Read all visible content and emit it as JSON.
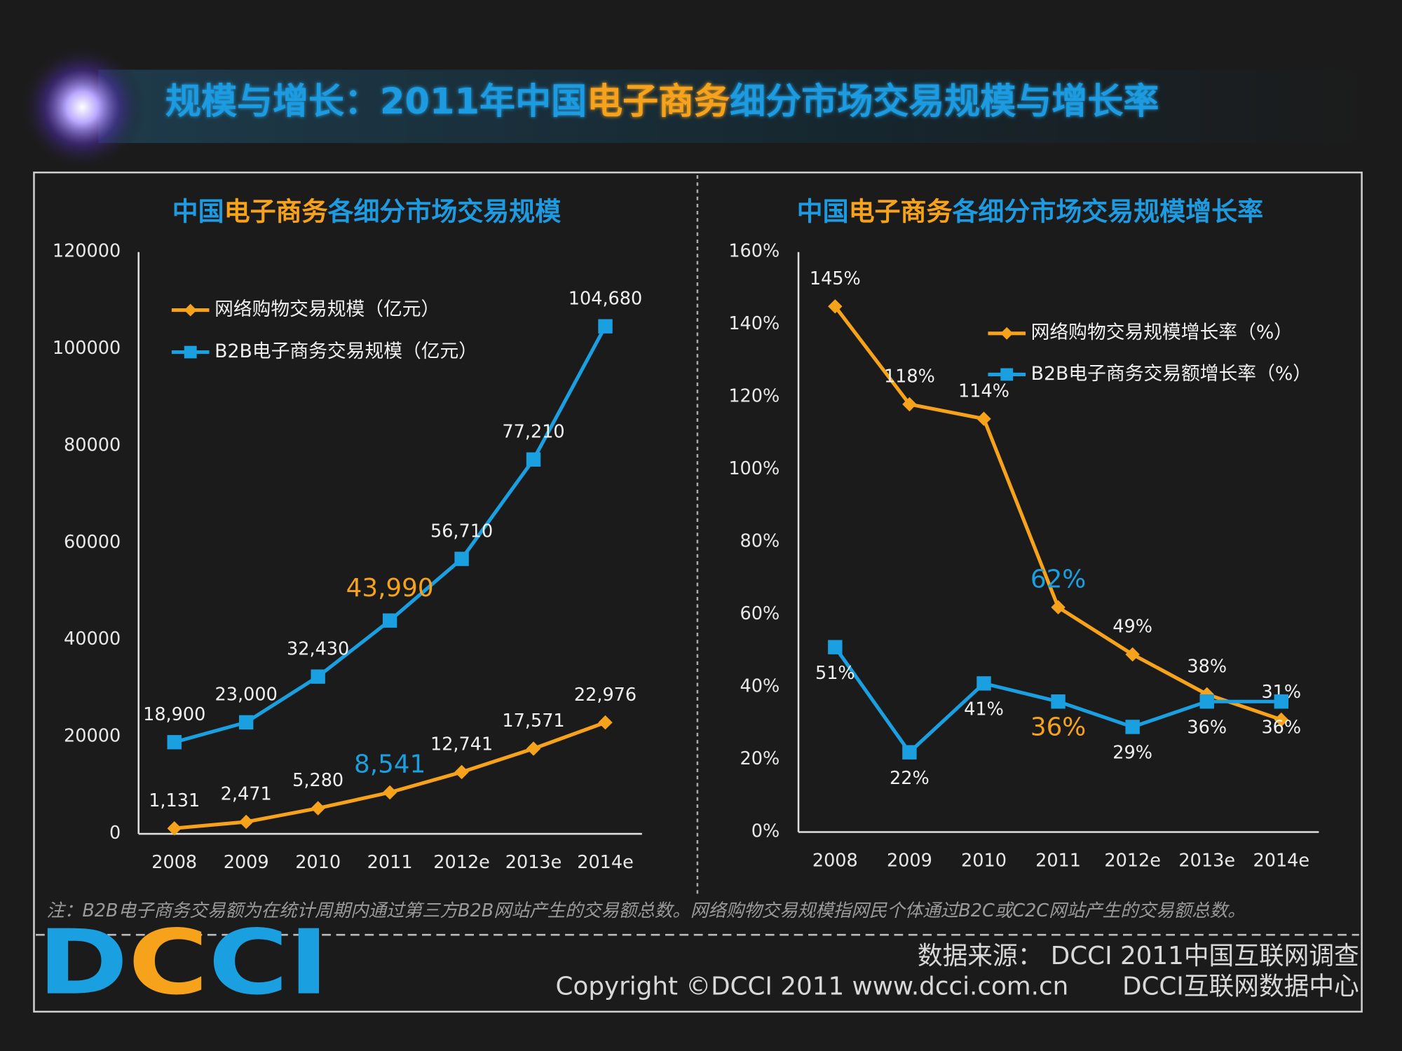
{
  "header": {
    "title": [
      "规模与增长：2011年中国",
      "电子商务",
      "细分市场交易规模与增长率"
    ]
  },
  "chart_data": [
    {
      "type": "line",
      "title": [
        "中国",
        "电子商务",
        "各细分市场交易规模"
      ],
      "categories": [
        "2008",
        "2009",
        "2010",
        "2011",
        "2012e",
        "2013e",
        "2014e"
      ],
      "series": [
        {
          "name": "网络购物交易规模（亿元）",
          "color": "#f7a21b",
          "marker": "diamond",
          "values": [
            1131,
            2471,
            5280,
            8541,
            12741,
            17571,
            22976
          ],
          "value_labels": [
            "1,131",
            "2,471",
            "5,280",
            "8,541",
            "12,741",
            "17,571",
            "22,976"
          ]
        },
        {
          "name": "B2B电子商务交易规模（亿元）",
          "color": "#1a9fe0",
          "marker": "square",
          "values": [
            18900,
            23000,
            32430,
            43990,
            56710,
            77210,
            104680
          ],
          "value_labels": [
            "18,900",
            "23,000",
            "32,430",
            "43,990",
            "56,710",
            "77,210",
            "104,680"
          ]
        }
      ],
      "ylim": [
        0,
        120000
      ],
      "yticks": [
        0,
        20000,
        40000,
        60000,
        80000,
        100000,
        120000
      ],
      "grid": false
    },
    {
      "type": "line",
      "title": [
        "中国",
        "电子商务",
        "各细分市场交易规模增长率"
      ],
      "categories": [
        "2008",
        "2009",
        "2010",
        "2011",
        "2012e",
        "2013e",
        "2014e"
      ],
      "series": [
        {
          "name": "网络购物交易规模增长率（%）",
          "color": "#f7a21b",
          "marker": "diamond",
          "values": [
            145,
            118,
            114,
            62,
            49,
            38,
            31
          ],
          "value_labels": [
            "145%",
            "118%",
            "114%",
            "62%",
            "49%",
            "38%",
            "31%"
          ]
        },
        {
          "name": "B2B电子商务交易额增长率（%）",
          "color": "#1a9fe0",
          "marker": "square",
          "values": [
            51,
            22,
            41,
            36,
            29,
            36,
            36
          ],
          "value_labels": [
            "51%",
            "22%",
            "41%",
            "36%",
            "29%",
            "36%",
            "36%"
          ]
        }
      ],
      "ylim": [
        0,
        160
      ],
      "yticks": [
        {
          "value": 0,
          "label": "0%"
        },
        {
          "value": 20,
          "label": "20%"
        },
        {
          "value": 40,
          "label": "40%"
        },
        {
          "value": 60,
          "label": "60%"
        },
        {
          "value": 80,
          "label": "80%"
        },
        {
          "value": 100,
          "label": "100%"
        },
        {
          "value": 120,
          "label": "120%"
        },
        {
          "value": 140,
          "label": "140%"
        },
        {
          "value": 160,
          "label": "160%"
        }
      ],
      "grid": false
    }
  ],
  "note": "注：B2B电子商务交易额为在统计周期内通过第三方B2B网站产生的交易额总数。网络购物交易规模指网民个体通过B2C或C2C网站产生的交易额总数。",
  "footer": {
    "logo": "DCCI",
    "source": "数据来源： DCCI 2011中国互联网调查",
    "copyright": "Copyright ©DCCI 2011 www.dcci.com.cn",
    "org": "DCCI互联网数据中心"
  }
}
